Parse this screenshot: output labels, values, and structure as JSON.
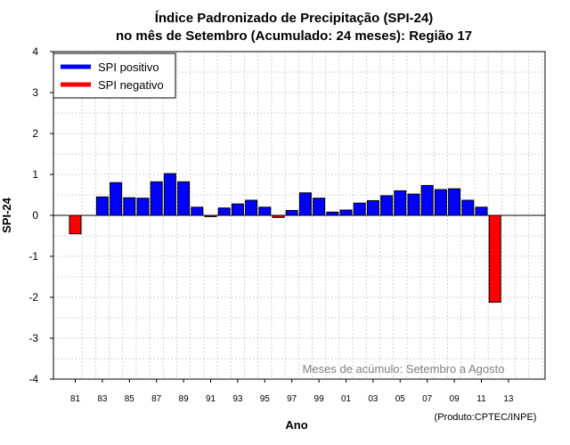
{
  "chart_data": {
    "type": "bar",
    "title": "Índice Padronizado de Precipitação (SPI-24)",
    "subtitle": "no mês de Setembro (Acumulado: 24 meses): Região 17",
    "xlabel": "Ano",
    "ylabel": "SPI-24",
    "ylim": [
      -4,
      4
    ],
    "yticks": [
      "-4",
      "-3",
      "-2",
      "-1",
      "0",
      "1",
      "2",
      "3",
      "4"
    ],
    "xticks": [
      "81",
      "83",
      "85",
      "87",
      "89",
      "91",
      "93",
      "95",
      "97",
      "99",
      "01",
      "03",
      "05",
      "07",
      "09",
      "11",
      "13"
    ],
    "grid": true,
    "categories": [
      "1981",
      "1982",
      "1983",
      "1984",
      "1985",
      "1986",
      "1987",
      "1988",
      "1989",
      "1990",
      "1991",
      "1992",
      "1993",
      "1994",
      "1995",
      "1996",
      "1997",
      "1998",
      "1999",
      "2000",
      "2001",
      "2002",
      "2003",
      "2004",
      "2005",
      "2006",
      "2007",
      "2008",
      "2009",
      "2010",
      "2011",
      "2012",
      "2013",
      "2014",
      "2015",
      "2016"
    ],
    "values": [
      -0.45,
      0,
      0.45,
      0.8,
      0.43,
      0.42,
      0.82,
      1.02,
      0.82,
      0.2,
      -0.03,
      0.18,
      0.28,
      0.37,
      0.2,
      -0.05,
      0.12,
      0.55,
      0.42,
      0.08,
      0.13,
      0.3,
      0.36,
      0.48,
      0.6,
      0.52,
      0.73,
      0.63,
      0.65,
      0.37,
      0.2,
      -2.12,
      null,
      null,
      null,
      null
    ],
    "colors": {
      "positive": "#0000ff",
      "negative": "#ff0000",
      "outline": "#000000",
      "grid": "#c8c8c8"
    },
    "legend": {
      "position": "top-left",
      "items": [
        {
          "label": "SPI positivo",
          "color": "#0000ff"
        },
        {
          "label": "SPI negativo",
          "color": "#ff0000"
        }
      ]
    },
    "annotation": "Meses de acúmulo: Setembro a Agosto",
    "credit": "(Produto:CPTEC/INPE)"
  }
}
